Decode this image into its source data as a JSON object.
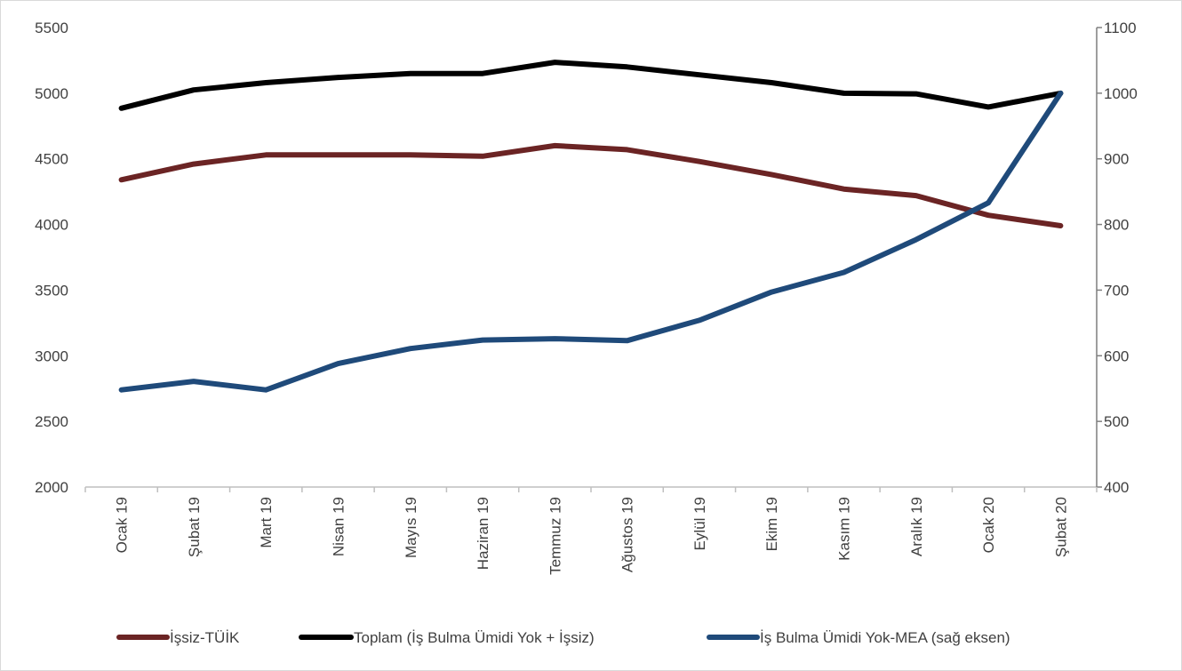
{
  "chart_data": {
    "type": "line",
    "title": "",
    "xlabel": "",
    "ylabel": "",
    "categories": [
      "Ocak 19",
      "Şubat 19",
      "Mart 19",
      "Nisan 19",
      "Mayıs 19",
      "Haziran 19",
      "Temmuz 19",
      "Ağustos 19",
      "Eylül 19",
      "Ekim 19",
      "Kasım 19",
      "Aralık 19",
      "Ocak 20",
      "Şubat 20"
    ],
    "ylim_left": [
      2000,
      5500
    ],
    "yticks_left": [
      2000,
      2500,
      3000,
      3500,
      4000,
      4500,
      5000,
      5500
    ],
    "ylim_right": [
      400,
      1100
    ],
    "yticks_right": [
      400,
      500,
      600,
      700,
      800,
      900,
      1000,
      1100
    ],
    "grid": false,
    "legend_position": "bottom",
    "series": [
      {
        "name": "İşsiz-TÜİK",
        "axis": "left",
        "color": "#6b2424",
        "values": [
          4340,
          4460,
          4530,
          4530,
          4530,
          4520,
          4600,
          4570,
          4480,
          4380,
          4270,
          4220,
          4070,
          3990
        ]
      },
      {
        "name": "Toplam (İş Bulma Ümidi Yok + İşsiz)",
        "axis": "left",
        "color": "#000000",
        "values": [
          4885,
          5025,
          5080,
          5120,
          5150,
          5150,
          5235,
          5200,
          5140,
          5080,
          5000,
          4995,
          4895,
          5000
        ]
      },
      {
        "name": "İş Bulma Ümidi Yok-MEA (sağ eksen)",
        "axis": "right",
        "color": "#1f4a7a",
        "values": [
          548,
          561,
          548,
          588,
          611,
          624,
          626,
          623,
          654,
          697,
          727,
          777,
          833,
          1000
        ]
      }
    ]
  }
}
